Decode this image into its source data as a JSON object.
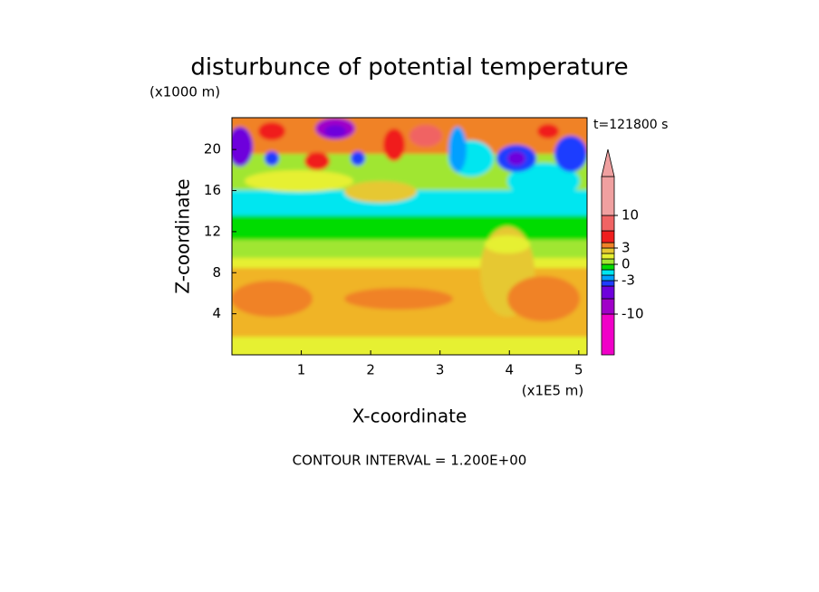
{
  "chart_data": {
    "type": "contour",
    "title": "disturbunce of potential temperature",
    "y_unit": "(x1000 m)",
    "time_label": "t=121800 s",
    "x_label": "X-coordinate",
    "y_label": "Z-coordinate",
    "x_unit": "(x1E5 m)",
    "footer": "CONTOUR INTERVAL = 1.200E+00",
    "xlim": [
      0,
      5.12
    ],
    "ylim": [
      0,
      23.1
    ],
    "xticks": [
      1,
      2,
      3,
      4,
      5
    ],
    "yticks": [
      4,
      8,
      12,
      16,
      20
    ],
    "colorbar": {
      "levels": [
        -15,
        -10,
        -6,
        -4,
        -3,
        -2,
        -1,
        0,
        1,
        2,
        3,
        4,
        6,
        10,
        15
      ],
      "colors": [
        "#f000c8",
        "#a000c8",
        "#6e00dc",
        "#1e3cff",
        "#00a0ff",
        "#00e6f0",
        "#00dc00",
        "#a0e632",
        "#e6f032",
        "#e6c832",
        "#f08228",
        "#f01e1e",
        "#f06464",
        "#f0a0a0"
      ],
      "extend_color": "#f0a0a0",
      "ticks": [
        -10,
        -3,
        0,
        3,
        10
      ]
    }
  }
}
